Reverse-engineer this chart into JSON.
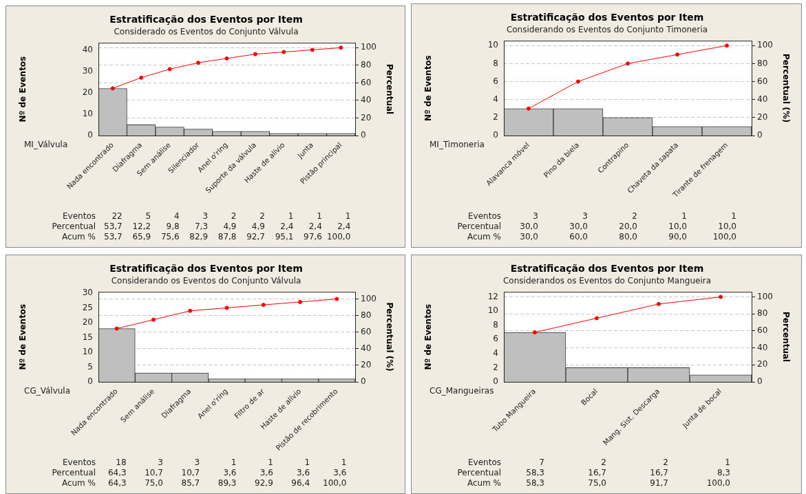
{
  "chart_data": [
    {
      "type": "bar",
      "title": "Estratificação dos Eventos por Item",
      "subtitle": "Considerado os Eventos do Conjunto Válvula",
      "ylabel": "Nº de Eventos",
      "y2label": "Percentual",
      "categories": [
        "Nada encontrado",
        "Diafragma",
        "Sem análise",
        "Silenciador",
        "Anel o'ring",
        "Suporte da válvula",
        "Haste de alívio",
        "Junta",
        "Pistão principal"
      ],
      "series": [
        {
          "color": "#bfbfbf",
          "values": [
            22,
            5,
            4,
            3,
            2,
            2,
            1,
            1,
            1
          ],
          "value_labels": [
            "22",
            "5",
            "4",
            "3",
            "2",
            "2",
            "1",
            "1",
            "1"
          ]
        },
        {
          "type": "line",
          "axis": "y2",
          "color": "#ff0000",
          "values": [
            53.7,
            65.9,
            75.6,
            82.9,
            87.8,
            92.7,
            95.1,
            97.6,
            100
          ],
          "value_labels": [
            "53,7",
            "65,9",
            "75,6",
            "82,9",
            "87,8",
            "92,7",
            "95,1",
            "97,6",
            "100,0"
          ]
        }
      ],
      "ylim": [
        0,
        43.3
      ],
      "yticks": [
        0,
        10,
        20,
        30,
        40
      ],
      "y2lim": [
        0,
        105.6
      ],
      "y2ticks": [
        0,
        20,
        40,
        60,
        80,
        100
      ],
      "grid": "y2",
      "marker": "circle",
      "legend": false,
      "annotations": [
        "MI_Válvula",
        "Eventos",
        "Percentual",
        "Acum %",
        "53,7",
        "12,2",
        "9,8",
        "7,3",
        "4,9",
        "4,9",
        "2,4",
        "2,4",
        "2,4"
      ]
    },
    {
      "type": "bar",
      "title": "Estratificação dos Eventos por Item",
      "subtitle": "Considerando os Eventos do Conjunto Timoneria",
      "ylabel": "Nº de Eventos",
      "y2label": "Percentual (%)",
      "categories": [
        "Alavanca móvel",
        "Pino da biela",
        "Contrapino",
        "Chaveta da sapata",
        "Tirante de frenagem"
      ],
      "series": [
        {
          "color": "#bfbfbf",
          "values": [
            3,
            3,
            2,
            1,
            1
          ],
          "value_labels": [
            "3",
            "3",
            "2",
            "1",
            "1"
          ]
        },
        {
          "type": "line",
          "axis": "y2",
          "color": "#ff0000",
          "values": [
            30,
            60,
            80,
            90,
            100
          ],
          "value_labels": [
            "30,0",
            "60,0",
            "80,0",
            "90,0",
            "100,0"
          ]
        }
      ],
      "ylim": [
        0,
        10.54
      ],
      "yticks": [
        0,
        2,
        4,
        6,
        8,
        10
      ],
      "y2lim": [
        0,
        105.4
      ],
      "y2ticks": [
        0,
        20,
        40,
        60,
        80,
        100
      ],
      "grid": "y2",
      "marker": "circle",
      "legend": false,
      "annotations": [
        "MI_Timoneria",
        "Eventos",
        "Percentual",
        "Acum %",
        "30,0",
        "30,0",
        "20,0",
        "10,0",
        "10,0"
      ]
    },
    {
      "type": "bar",
      "title": "Estratificação dos Eventos por Item",
      "subtitle": "Considerando os Eventos do Conjunto Válvula",
      "ylabel": "Nº de Eventos",
      "y2label": "Percentual (%)",
      "categories": [
        "Nada encontrado",
        "Sem análise",
        "Diafragma",
        "Anel o'ring",
        "Filtro de ar",
        "Haste de alívio",
        "Pistão de recobrimento"
      ],
      "series": [
        {
          "color": "#bfbfbf",
          "values": [
            18,
            3,
            3,
            1,
            1,
            1,
            1
          ],
          "value_labels": [
            "18",
            "3",
            "3",
            "1",
            "1",
            "1",
            "1"
          ]
        },
        {
          "type": "line",
          "axis": "y2",
          "color": "#ff0000",
          "values": [
            64.3,
            75,
            85.7,
            89.3,
            92.9,
            96.4,
            100
          ],
          "value_labels": [
            "64,3",
            "75,0",
            "85,7",
            "89,3",
            "92,9",
            "96,4",
            "100,0"
          ]
        }
      ],
      "ylim": [
        0,
        30.4
      ],
      "yticks": [
        0,
        5,
        10,
        15,
        20,
        25,
        30
      ],
      "y2lim": [
        0,
        108.6
      ],
      "y2ticks": [
        0,
        20,
        40,
        60,
        80,
        100
      ],
      "grid": "y2",
      "marker": "circle",
      "legend": false,
      "annotations": [
        "CG_Válvula",
        "Eventos",
        "Percentual",
        "Acum %",
        "64,3",
        "10,7",
        "10,7",
        "3,6",
        "3,6",
        "3,6",
        "3,6"
      ]
    },
    {
      "type": "bar",
      "title": "Estratificação dos Eventos por Item",
      "subtitle": "Considerandos os Eventos do Conjunto Mangueira",
      "ylabel": "Nº de Eventos",
      "y2label": "Percentual",
      "categories": [
        "Tubo Mangueira",
        "Bocal",
        "Mang. Sist. Descarga",
        "Junta de bocal"
      ],
      "series": [
        {
          "color": "#bfbfbf",
          "values": [
            7,
            2,
            2,
            1
          ],
          "value_labels": [
            "7",
            "2",
            "2",
            "1"
          ]
        },
        {
          "type": "line",
          "axis": "y2",
          "color": "#ff0000",
          "values": [
            58.3,
            75,
            91.7,
            100
          ],
          "value_labels": [
            "58,3",
            "75,0",
            "91,7",
            "100,0"
          ]
        }
      ],
      "ylim": [
        0,
        12.72
      ],
      "yticks": [
        0,
        2,
        4,
        6,
        8,
        10,
        12
      ],
      "y2lim": [
        0,
        106
      ],
      "y2ticks": [
        0,
        20,
        40,
        60,
        80,
        100
      ],
      "grid": "y2",
      "marker": "circle",
      "legend": false,
      "annotations": [
        "CG_Mangueiras",
        "Eventos",
        "Percentual",
        "Acum %",
        "58,3",
        "16,7",
        "16,7",
        "8,3"
      ]
    }
  ]
}
